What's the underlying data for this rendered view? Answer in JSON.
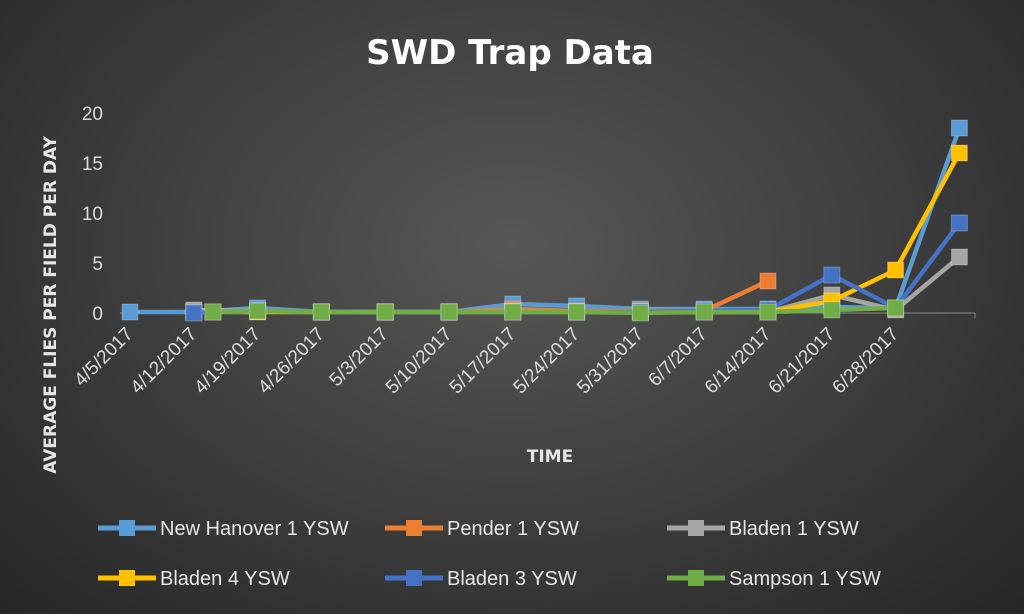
{
  "chart_data": {
    "type": "line",
    "title": "SWD Trap Data",
    "xlabel": "TIME",
    "ylabel": "AVERAGE FLIES PER FIELD PER DAY",
    "ylim": [
      0,
      20
    ],
    "yticks": [
      0,
      5,
      10,
      15,
      20
    ],
    "categories": [
      "4/5/2017",
      "4/12/2017",
      "4/19/2017",
      "4/26/2017",
      "5/3/2017",
      "5/10/2017",
      "5/17/2017",
      "5/24/2017",
      "5/31/2017",
      "6/7/2017",
      "6/14/2017",
      "6/21/2017",
      "6/28/2017"
    ],
    "x": [
      0,
      1,
      1.2,
      2,
      3,
      4,
      5,
      6,
      7,
      7.8,
      8.8,
      9.8,
      10.8,
      11.8,
      12.8,
      13.8
    ],
    "series": [
      {
        "name": "New Hanover 1 YSW",
        "color": "#5b9bd5",
        "points": [
          [
            0,
            0.1
          ],
          [
            1,
            0.1
          ],
          [
            2,
            0.5
          ],
          [
            3,
            0.1
          ],
          [
            4,
            0.1
          ],
          [
            5,
            0.1
          ],
          [
            6,
            0.9
          ],
          [
            7,
            0.7
          ],
          [
            8,
            0.4
          ],
          [
            9,
            0.4
          ],
          [
            10,
            0.4
          ],
          [
            11,
            0.6
          ],
          [
            12,
            0.5
          ],
          [
            13,
            18.5
          ]
        ]
      },
      {
        "name": "Pender 1 YSW",
        "color": "#ed7d31",
        "points": [
          [
            1,
            0.1
          ],
          [
            1.3,
            0.1
          ],
          [
            2,
            0.2
          ],
          [
            3,
            0.1
          ],
          [
            4,
            0.1
          ],
          [
            5,
            0.1
          ],
          [
            6,
            0.4
          ],
          [
            7,
            0.2
          ],
          [
            8,
            0.2
          ],
          [
            9,
            0.2
          ],
          [
            10,
            3.2
          ]
        ]
      },
      {
        "name": "Bladen 1 YSW",
        "color": "#a5a5a5",
        "points": [
          [
            1,
            0.3
          ],
          [
            2,
            0.2
          ],
          [
            3,
            0.1
          ],
          [
            4,
            0.1
          ],
          [
            5,
            0.1
          ],
          [
            6,
            0.2
          ],
          [
            7,
            0.1
          ],
          [
            8,
            0.1
          ],
          [
            9,
            0.1
          ],
          [
            10,
            0.1
          ],
          [
            11,
            1.8
          ],
          [
            12,
            0.3
          ],
          [
            13,
            5.6
          ]
        ]
      },
      {
        "name": "Bladen 4 YSW",
        "color": "#ffc000",
        "points": [
          [
            1.3,
            0.1
          ],
          [
            2,
            0.1
          ],
          [
            3,
            0.1
          ],
          [
            4,
            0.1
          ],
          [
            5,
            0.1
          ],
          [
            6,
            0.1
          ],
          [
            7,
            0.1
          ],
          [
            8,
            0.1
          ],
          [
            9,
            0.1
          ],
          [
            10,
            0.1
          ],
          [
            11,
            1.2
          ],
          [
            12,
            4.3
          ],
          [
            13,
            16
          ]
        ]
      },
      {
        "name": "Bladen 3 YSW",
        "color": "#4472c4",
        "points": [
          [
            1,
            0.0
          ],
          [
            2,
            0.2
          ],
          [
            3,
            0.1
          ],
          [
            4,
            0.1
          ],
          [
            5,
            0.1
          ],
          [
            6,
            0.1
          ],
          [
            7,
            0.1
          ],
          [
            8,
            0.1
          ],
          [
            9,
            0.2
          ],
          [
            10,
            0.3
          ],
          [
            11,
            3.8
          ],
          [
            12,
            0.5
          ],
          [
            13,
            9
          ]
        ]
      },
      {
        "name": "Sampson 1 YSW",
        "color": "#70ad47",
        "points": [
          [
            1.3,
            0.1
          ],
          [
            2,
            0.2
          ],
          [
            3,
            0.1
          ],
          [
            4,
            0.1
          ],
          [
            5,
            0.1
          ],
          [
            6,
            0.1
          ],
          [
            7,
            0.1
          ],
          [
            8,
            0.0
          ],
          [
            9,
            0.1
          ],
          [
            10,
            0.1
          ],
          [
            11,
            0.3
          ],
          [
            12,
            0.5
          ]
        ]
      }
    ],
    "legend": {
      "position": "bottom"
    }
  }
}
